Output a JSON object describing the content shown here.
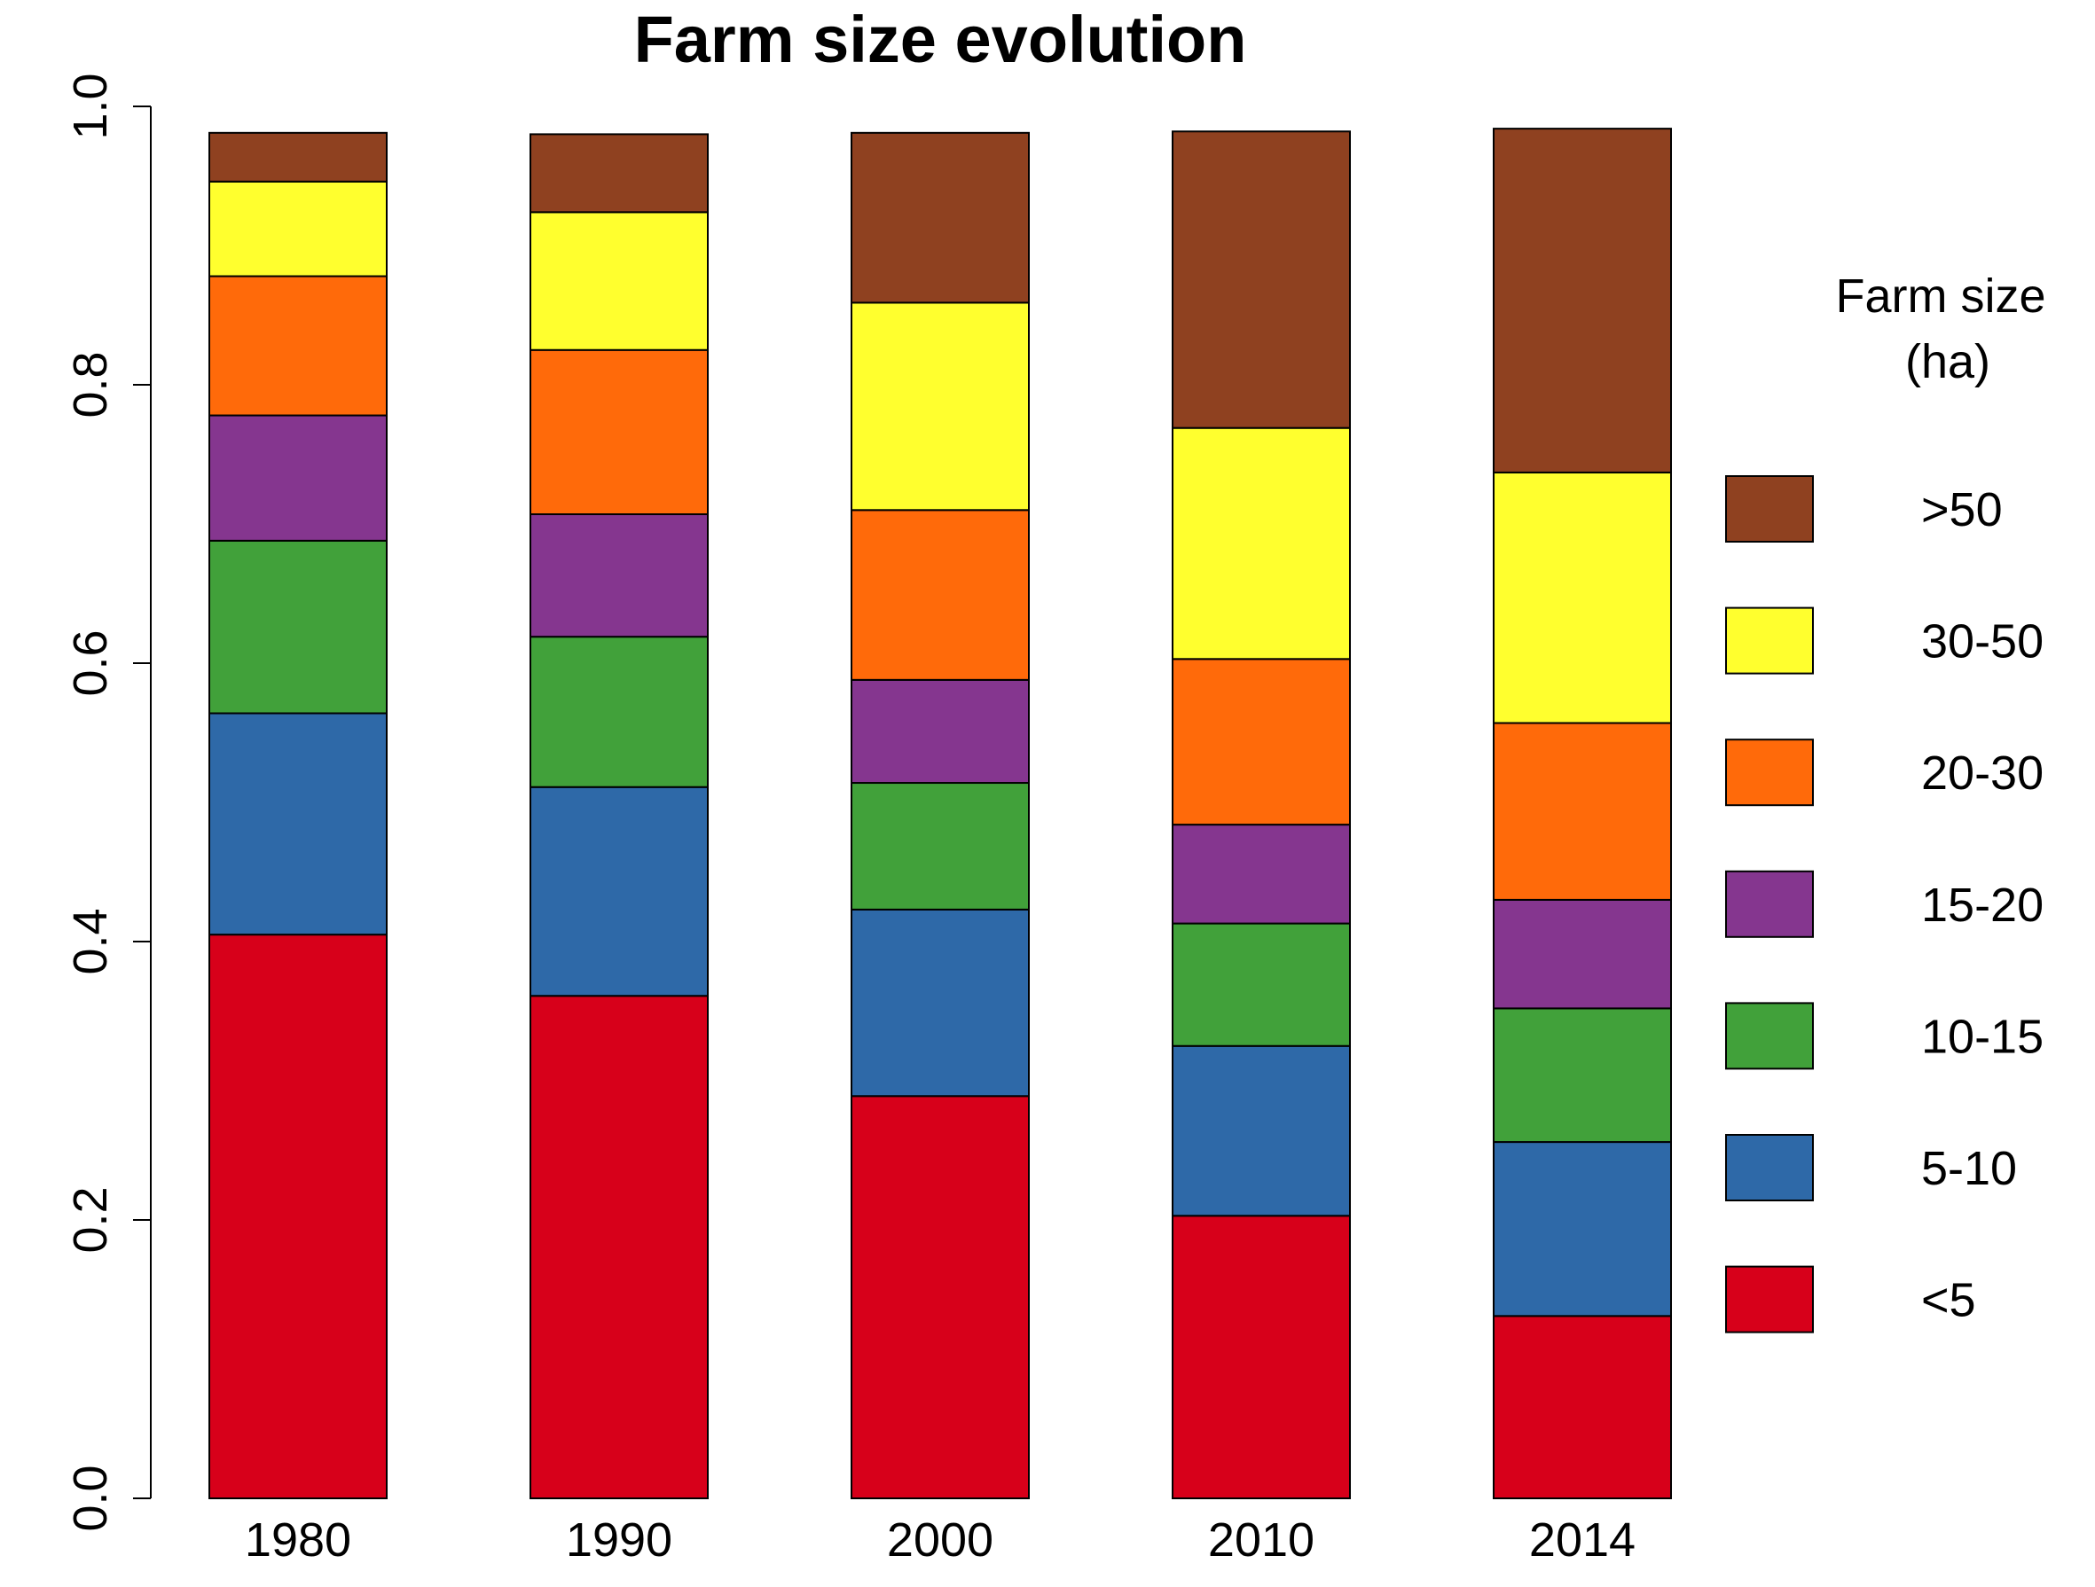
{
  "chart_data": {
    "type": "bar",
    "stacked": true,
    "title": "Farm size evolution",
    "xlabel": "",
    "ylabel": "",
    "ylim": [
      0,
      1
    ],
    "yticks": [
      "0.0",
      "0.2",
      "0.4",
      "0.6",
      "0.8",
      "1.0"
    ],
    "yticks_values": [
      0,
      0.2,
      0.4,
      0.6,
      0.8,
      1.0
    ],
    "categories": [
      "1980",
      "1990",
      "2000",
      "2010",
      "2014"
    ],
    "legend": {
      "title_line1": "Farm size",
      "title_line2": "(ha)",
      "position": "right"
    },
    "series": [
      {
        "name": "<5",
        "color": "#d7001a",
        "values": [
          0.405,
          0.361,
          0.289,
          0.203,
          0.131
        ]
      },
      {
        "name": "5-10",
        "color": "#2e69a8",
        "values": [
          0.159,
          0.15,
          0.134,
          0.122,
          0.125
        ]
      },
      {
        "name": "10-15",
        "color": "#41a13a",
        "values": [
          0.124,
          0.108,
          0.091,
          0.088,
          0.096
        ]
      },
      {
        "name": "15-20",
        "color": "#85368f",
        "values": [
          0.09,
          0.088,
          0.074,
          0.071,
          0.078
        ]
      },
      {
        "name": "20-30",
        "color": "#ff6a0a",
        "values": [
          0.1,
          0.118,
          0.122,
          0.119,
          0.127
        ]
      },
      {
        "name": "30-50",
        "color": "#ffff2e",
        "values": [
          0.068,
          0.099,
          0.149,
          0.166,
          0.18
        ]
      },
      {
        "name": ">50",
        "color": "#8f4120",
        "values": [
          0.035,
          0.056,
          0.122,
          0.213,
          0.247
        ]
      }
    ]
  }
}
